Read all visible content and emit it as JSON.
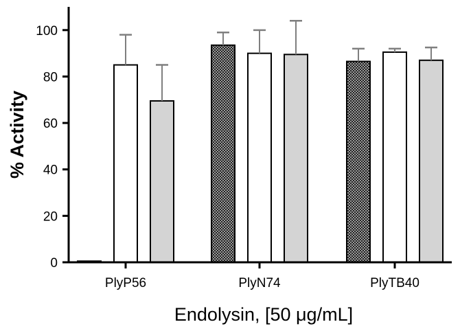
{
  "chart_data": {
    "type": "bar",
    "title": "",
    "xlabel": "Endolysin, [50 μg/mL]",
    "ylabel": "% Activity",
    "ylim": [
      0,
      110
    ],
    "yticks": [
      0,
      20,
      40,
      60,
      80,
      100
    ],
    "grid": false,
    "categories": [
      "PlyP56",
      "PlyN74",
      "PlyTB40"
    ],
    "series": [
      {
        "name": "series-1",
        "pattern": "checkered",
        "values": [
          0.5,
          93.5,
          86.5
        ],
        "errors": [
          0,
          5.5,
          5.5
        ]
      },
      {
        "name": "series-2",
        "pattern": "white",
        "values": [
          85,
          90,
          90.5
        ],
        "errors": [
          13,
          10,
          1.5
        ]
      },
      {
        "name": "series-3",
        "pattern": "gray",
        "values": [
          69.5,
          89.5,
          87
        ],
        "errors": [
          15.5,
          14.5,
          5.5
        ]
      }
    ],
    "colors": {
      "axis": "#000000",
      "bar_edge": "#000000",
      "gray_fill": "#d4d4d4",
      "white_fill": "#ffffff",
      "check_dark": "#222222",
      "check_light": "#9a9a9a",
      "error_bar": "#7f7f7f"
    }
  }
}
